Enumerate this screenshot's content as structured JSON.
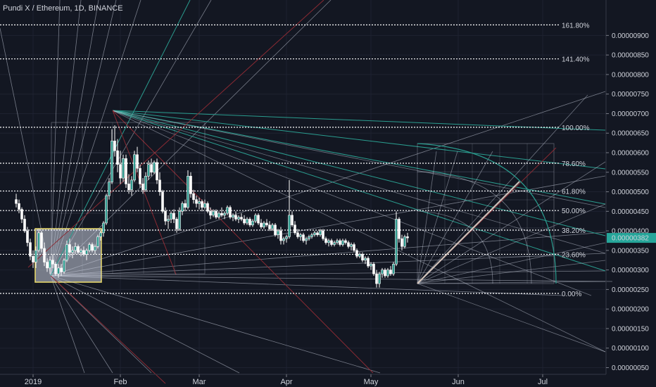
{
  "chart_data": {
    "type": "candlestick",
    "title": "Pundi X / Ethereum, 1D, BINANCE",
    "ylim": [
      5e-08,
      9.5e-07
    ],
    "y_ticks": [
      {
        "value": 9e-07,
        "label": "0.00000900"
      },
      {
        "value": 8.5e-07,
        "label": "0.00000850"
      },
      {
        "value": 8e-07,
        "label": "0.00000800"
      },
      {
        "value": 7.5e-07,
        "label": "0.00000750"
      },
      {
        "value": 7e-07,
        "label": "0.00000700"
      },
      {
        "value": 6.5e-07,
        "label": "0.00000650"
      },
      {
        "value": 6e-07,
        "label": "0.00000600"
      },
      {
        "value": 5.5e-07,
        "label": "0.00000550"
      },
      {
        "value": 5e-07,
        "label": "0.00000500"
      },
      {
        "value": 4.5e-07,
        "label": "0.00000450"
      },
      {
        "value": 4e-07,
        "label": "0.00000400"
      },
      {
        "value": 3.5e-07,
        "label": "0.00000350"
      },
      {
        "value": 3e-07,
        "label": "0.00000300"
      },
      {
        "value": 2.5e-07,
        "label": "0.00000250"
      },
      {
        "value": 2e-07,
        "label": "0.00000200"
      },
      {
        "value": 1.5e-07,
        "label": "0.00000150"
      },
      {
        "value": 1e-07,
        "label": "0.00000100"
      },
      {
        "value": 5e-08,
        "label": "0.00000050"
      }
    ],
    "x_ticks": [
      {
        "day": 0,
        "label": "2019"
      },
      {
        "day": 31,
        "label": "Feb"
      },
      {
        "day": 59,
        "label": "Mar"
      },
      {
        "day": 90,
        "label": "Apr"
      },
      {
        "day": 120,
        "label": "May"
      },
      {
        "day": 151,
        "label": "Jun"
      },
      {
        "day": 181,
        "label": "Jul"
      }
    ],
    "last_price": {
      "value": 3.82e-07,
      "label": "0.00000382"
    },
    "fib_levels": [
      {
        "ratio": "161.80%",
        "value": 9.27e-07
      },
      {
        "ratio": "141.40%",
        "value": 8.4e-07
      },
      {
        "ratio": "100.00%",
        "value": 6.65e-07
      },
      {
        "ratio": "78.60%",
        "value": 5.73e-07
      },
      {
        "ratio": "61.80%",
        "value": 5.02e-07
      },
      {
        "ratio": "50.00%",
        "value": 4.52e-07
      },
      {
        "ratio": "38.20%",
        "value": 4.02e-07
      },
      {
        "ratio": "23.60%",
        "value": 3.4e-07
      },
      {
        "ratio": "0.00%",
        "value": 2.4e-07
      }
    ],
    "candles": [
      {
        "day": -6,
        "o": 4.8,
        "h": 4.95,
        "l": 4.6,
        "c": 4.7
      },
      {
        "day": -5,
        "o": 4.7,
        "h": 4.8,
        "l": 4.45,
        "c": 4.55
      },
      {
        "day": -4,
        "o": 4.55,
        "h": 4.6,
        "l": 4.2,
        "c": 4.3
      },
      {
        "day": -3,
        "o": 4.3,
        "h": 4.4,
        "l": 3.95,
        "c": 4.0
      },
      {
        "day": -2,
        "o": 4.0,
        "h": 4.1,
        "l": 3.6,
        "c": 3.7
      },
      {
        "day": -1,
        "o": 3.7,
        "h": 3.8,
        "l": 3.25,
        "c": 3.35
      },
      {
        "day": 0,
        "o": 3.35,
        "h": 3.5,
        "l": 3.05,
        "c": 3.2
      },
      {
        "day": 1,
        "o": 3.2,
        "h": 3.6,
        "l": 3.05,
        "c": 3.5
      },
      {
        "day": 2,
        "o": 3.5,
        "h": 4.05,
        "l": 3.45,
        "c": 3.95
      },
      {
        "day": 3,
        "o": 3.95,
        "h": 4.0,
        "l": 3.45,
        "c": 3.55
      },
      {
        "day": 4,
        "o": 3.55,
        "h": 3.7,
        "l": 3.1,
        "c": 3.2
      },
      {
        "day": 5,
        "o": 3.2,
        "h": 3.3,
        "l": 2.95,
        "c": 3.05
      },
      {
        "day": 6,
        "o": 3.05,
        "h": 3.35,
        "l": 2.9,
        "c": 3.25
      },
      {
        "day": 7,
        "o": 3.25,
        "h": 3.4,
        "l": 3.05,
        "c": 3.15
      },
      {
        "day": 8,
        "o": 3.15,
        "h": 3.2,
        "l": 2.85,
        "c": 2.9
      },
      {
        "day": 9,
        "o": 2.9,
        "h": 3.15,
        "l": 2.8,
        "c": 3.05
      },
      {
        "day": 10,
        "o": 3.05,
        "h": 3.15,
        "l": 2.85,
        "c": 2.95
      },
      {
        "day": 11,
        "o": 2.95,
        "h": 3.3,
        "l": 2.9,
        "c": 3.25
      },
      {
        "day": 12,
        "o": 3.25,
        "h": 3.75,
        "l": 3.2,
        "c": 3.65
      },
      {
        "day": 13,
        "o": 3.65,
        "h": 3.8,
        "l": 3.35,
        "c": 3.45
      },
      {
        "day": 14,
        "o": 3.45,
        "h": 3.6,
        "l": 3.3,
        "c": 3.5
      },
      {
        "day": 15,
        "o": 3.5,
        "h": 3.7,
        "l": 3.4,
        "c": 3.6
      },
      {
        "day": 16,
        "o": 3.6,
        "h": 3.65,
        "l": 3.4,
        "c": 3.45
      },
      {
        "day": 17,
        "o": 3.45,
        "h": 3.55,
        "l": 3.35,
        "c": 3.5
      },
      {
        "day": 18,
        "o": 3.5,
        "h": 3.6,
        "l": 3.35,
        "c": 3.4
      },
      {
        "day": 19,
        "o": 3.4,
        "h": 3.55,
        "l": 3.25,
        "c": 3.5
      },
      {
        "day": 20,
        "o": 3.5,
        "h": 3.7,
        "l": 3.45,
        "c": 3.65
      },
      {
        "day": 21,
        "o": 3.65,
        "h": 3.7,
        "l": 3.45,
        "c": 3.5
      },
      {
        "day": 22,
        "o": 3.5,
        "h": 3.65,
        "l": 3.4,
        "c": 3.6
      },
      {
        "day": 23,
        "o": 3.6,
        "h": 3.9,
        "l": 3.55,
        "c": 3.85
      },
      {
        "day": 24,
        "o": 3.85,
        "h": 4.0,
        "l": 3.75,
        "c": 3.95
      },
      {
        "day": 25,
        "o": 3.95,
        "h": 4.25,
        "l": 3.85,
        "c": 4.2
      },
      {
        "day": 26,
        "o": 4.2,
        "h": 4.95,
        "l": 4.15,
        "c": 4.9
      },
      {
        "day": 27,
        "o": 4.9,
        "h": 5.35,
        "l": 4.8,
        "c": 5.25
      },
      {
        "day": 28,
        "o": 5.25,
        "h": 6.6,
        "l": 5.2,
        "c": 6.3
      },
      {
        "day": 29,
        "o": 6.3,
        "h": 6.7,
        "l": 5.9,
        "c": 6.05
      },
      {
        "day": 30,
        "o": 6.05,
        "h": 6.35,
        "l": 5.5,
        "c": 5.7
      },
      {
        "day": 31,
        "o": 5.7,
        "h": 6.05,
        "l": 5.2,
        "c": 5.35
      },
      {
        "day": 32,
        "o": 5.35,
        "h": 5.95,
        "l": 5.25,
        "c": 5.85
      },
      {
        "day": 33,
        "o": 5.85,
        "h": 5.95,
        "l": 5.1,
        "c": 5.2
      },
      {
        "day": 34,
        "o": 5.2,
        "h": 5.45,
        "l": 4.95,
        "c": 5.05
      },
      {
        "day": 35,
        "o": 5.05,
        "h": 5.4,
        "l": 4.9,
        "c": 5.3
      },
      {
        "day": 36,
        "o": 5.3,
        "h": 6.05,
        "l": 5.25,
        "c": 5.95
      },
      {
        "day": 37,
        "o": 5.95,
        "h": 6.15,
        "l": 5.5,
        "c": 5.6
      },
      {
        "day": 38,
        "o": 5.6,
        "h": 5.7,
        "l": 5.1,
        "c": 5.2
      },
      {
        "day": 39,
        "o": 5.2,
        "h": 5.35,
        "l": 4.95,
        "c": 5.05
      },
      {
        "day": 40,
        "o": 5.05,
        "h": 5.5,
        "l": 5.0,
        "c": 5.4
      },
      {
        "day": 41,
        "o": 5.4,
        "h": 5.8,
        "l": 5.3,
        "c": 5.7
      },
      {
        "day": 42,
        "o": 5.7,
        "h": 5.85,
        "l": 5.4,
        "c": 5.5
      },
      {
        "day": 43,
        "o": 5.5,
        "h": 5.8,
        "l": 5.45,
        "c": 5.75
      },
      {
        "day": 44,
        "o": 5.75,
        "h": 5.85,
        "l": 5.2,
        "c": 5.3
      },
      {
        "day": 45,
        "o": 5.3,
        "h": 5.5,
        "l": 4.9,
        "c": 5.0
      },
      {
        "day": 46,
        "o": 5.0,
        "h": 5.05,
        "l": 4.45,
        "c": 4.5
      },
      {
        "day": 47,
        "o": 4.5,
        "h": 4.6,
        "l": 4.15,
        "c": 4.25
      },
      {
        "day": 48,
        "o": 4.25,
        "h": 4.4,
        "l": 4.05,
        "c": 4.3
      },
      {
        "day": 49,
        "o": 4.3,
        "h": 4.5,
        "l": 4.2,
        "c": 4.45
      },
      {
        "day": 50,
        "o": 4.45,
        "h": 4.55,
        "l": 4.2,
        "c": 4.3
      },
      {
        "day": 51,
        "o": 4.3,
        "h": 4.35,
        "l": 3.95,
        "c": 4.05
      },
      {
        "day": 52,
        "o": 4.05,
        "h": 4.6,
        "l": 4.0,
        "c": 4.5
      },
      {
        "day": 53,
        "o": 4.5,
        "h": 4.75,
        "l": 4.4,
        "c": 4.7
      },
      {
        "day": 54,
        "o": 4.7,
        "h": 4.8,
        "l": 4.5,
        "c": 4.6
      },
      {
        "day": 55,
        "o": 4.6,
        "h": 5.55,
        "l": 4.55,
        "c": 5.4
      },
      {
        "day": 56,
        "o": 5.4,
        "h": 5.5,
        "l": 4.85,
        "c": 4.95
      },
      {
        "day": 57,
        "o": 4.95,
        "h": 5.05,
        "l": 4.7,
        "c": 4.8
      },
      {
        "day": 58,
        "o": 4.8,
        "h": 4.9,
        "l": 4.6,
        "c": 4.7
      },
      {
        "day": 59,
        "o": 4.7,
        "h": 4.85,
        "l": 4.55,
        "c": 4.75
      },
      {
        "day": 60,
        "o": 4.75,
        "h": 4.8,
        "l": 4.5,
        "c": 4.6
      },
      {
        "day": 61,
        "o": 4.6,
        "h": 4.8,
        "l": 4.55,
        "c": 4.7
      },
      {
        "day": 62,
        "o": 4.7,
        "h": 4.75,
        "l": 4.45,
        "c": 4.5
      },
      {
        "day": 63,
        "o": 4.5,
        "h": 4.6,
        "l": 4.3,
        "c": 4.4
      },
      {
        "day": 64,
        "o": 4.4,
        "h": 4.55,
        "l": 4.35,
        "c": 4.5
      },
      {
        "day": 65,
        "o": 4.5,
        "h": 4.55,
        "l": 4.3,
        "c": 4.35
      },
      {
        "day": 66,
        "o": 4.35,
        "h": 4.5,
        "l": 4.3,
        "c": 4.45
      },
      {
        "day": 67,
        "o": 4.45,
        "h": 4.6,
        "l": 4.35,
        "c": 4.4
      },
      {
        "day": 68,
        "o": 4.4,
        "h": 4.5,
        "l": 4.3,
        "c": 4.45
      },
      {
        "day": 69,
        "o": 4.45,
        "h": 4.65,
        "l": 4.4,
        "c": 4.6
      },
      {
        "day": 70,
        "o": 4.6,
        "h": 4.65,
        "l": 4.3,
        "c": 4.35
      },
      {
        "day": 71,
        "o": 4.35,
        "h": 4.45,
        "l": 4.25,
        "c": 4.4
      },
      {
        "day": 72,
        "o": 4.4,
        "h": 4.5,
        "l": 4.25,
        "c": 4.3
      },
      {
        "day": 73,
        "o": 4.3,
        "h": 4.4,
        "l": 4.2,
        "c": 4.35
      },
      {
        "day": 74,
        "o": 4.35,
        "h": 4.45,
        "l": 4.25,
        "c": 4.3
      },
      {
        "day": 75,
        "o": 4.3,
        "h": 4.4,
        "l": 4.15,
        "c": 4.2
      },
      {
        "day": 76,
        "o": 4.2,
        "h": 4.35,
        "l": 4.15,
        "c": 4.3
      },
      {
        "day": 77,
        "o": 4.3,
        "h": 4.35,
        "l": 4.1,
        "c": 4.15
      },
      {
        "day": 78,
        "o": 4.15,
        "h": 4.3,
        "l": 4.1,
        "c": 4.25
      },
      {
        "day": 79,
        "o": 4.25,
        "h": 4.45,
        "l": 4.2,
        "c": 4.4
      },
      {
        "day": 80,
        "o": 4.4,
        "h": 4.45,
        "l": 4.15,
        "c": 4.2
      },
      {
        "day": 81,
        "o": 4.2,
        "h": 4.3,
        "l": 4.05,
        "c": 4.1
      },
      {
        "day": 82,
        "o": 4.1,
        "h": 4.25,
        "l": 4.05,
        "c": 4.2
      },
      {
        "day": 83,
        "o": 4.2,
        "h": 4.3,
        "l": 4.1,
        "c": 4.15
      },
      {
        "day": 84,
        "o": 4.15,
        "h": 4.25,
        "l": 4.0,
        "c": 4.05
      },
      {
        "day": 85,
        "o": 4.05,
        "h": 4.2,
        "l": 4.0,
        "c": 4.15
      },
      {
        "day": 86,
        "o": 4.15,
        "h": 4.2,
        "l": 3.85,
        "c": 3.9
      },
      {
        "day": 87,
        "o": 3.9,
        "h": 4.05,
        "l": 3.8,
        "c": 4.0
      },
      {
        "day": 88,
        "o": 4.0,
        "h": 4.1,
        "l": 3.65,
        "c": 3.75
      },
      {
        "day": 89,
        "o": 3.75,
        "h": 3.85,
        "l": 3.65,
        "c": 3.8
      },
      {
        "day": 90,
        "o": 3.8,
        "h": 3.9,
        "l": 3.7,
        "c": 3.85
      },
      {
        "day": 91,
        "o": 3.85,
        "h": 5.3,
        "l": 3.8,
        "c": 4.4
      },
      {
        "day": 92,
        "o": 4.4,
        "h": 4.5,
        "l": 4.1,
        "c": 4.15
      },
      {
        "day": 93,
        "o": 4.15,
        "h": 4.25,
        "l": 3.9,
        "c": 3.95
      },
      {
        "day": 94,
        "o": 3.95,
        "h": 4.05,
        "l": 3.8,
        "c": 3.85
      },
      {
        "day": 95,
        "o": 3.85,
        "h": 3.95,
        "l": 3.75,
        "c": 3.9
      },
      {
        "day": 96,
        "o": 3.9,
        "h": 3.95,
        "l": 3.7,
        "c": 3.75
      },
      {
        "day": 97,
        "o": 3.75,
        "h": 3.85,
        "l": 3.65,
        "c": 3.8
      },
      {
        "day": 98,
        "o": 3.8,
        "h": 3.9,
        "l": 3.75,
        "c": 3.85
      },
      {
        "day": 99,
        "o": 3.85,
        "h": 3.95,
        "l": 3.8,
        "c": 3.9
      },
      {
        "day": 100,
        "o": 3.9,
        "h": 4.0,
        "l": 3.85,
        "c": 3.95
      },
      {
        "day": 101,
        "o": 3.95,
        "h": 4.0,
        "l": 3.85,
        "c": 3.9
      },
      {
        "day": 102,
        "o": 3.9,
        "h": 4.05,
        "l": 3.85,
        "c": 4.0
      },
      {
        "day": 103,
        "o": 4.0,
        "h": 4.05,
        "l": 3.75,
        "c": 3.8
      },
      {
        "day": 104,
        "o": 3.8,
        "h": 3.85,
        "l": 3.65,
        "c": 3.7
      },
      {
        "day": 105,
        "o": 3.7,
        "h": 3.8,
        "l": 3.6,
        "c": 3.75
      },
      {
        "day": 106,
        "o": 3.75,
        "h": 3.8,
        "l": 3.6,
        "c": 3.65
      },
      {
        "day": 107,
        "o": 3.65,
        "h": 3.75,
        "l": 3.6,
        "c": 3.7
      },
      {
        "day": 108,
        "o": 3.7,
        "h": 3.8,
        "l": 3.65,
        "c": 3.75
      },
      {
        "day": 109,
        "o": 3.75,
        "h": 3.8,
        "l": 3.6,
        "c": 3.65
      },
      {
        "day": 110,
        "o": 3.65,
        "h": 3.8,
        "l": 3.6,
        "c": 3.75
      },
      {
        "day": 111,
        "o": 3.75,
        "h": 3.8,
        "l": 3.65,
        "c": 3.7
      },
      {
        "day": 112,
        "o": 3.7,
        "h": 3.75,
        "l": 3.55,
        "c": 3.6
      },
      {
        "day": 113,
        "o": 3.6,
        "h": 3.7,
        "l": 3.5,
        "c": 3.65
      },
      {
        "day": 114,
        "o": 3.65,
        "h": 3.7,
        "l": 3.45,
        "c": 3.5
      },
      {
        "day": 115,
        "o": 3.5,
        "h": 3.55,
        "l": 3.3,
        "c": 3.35
      },
      {
        "day": 116,
        "o": 3.35,
        "h": 3.45,
        "l": 3.3,
        "c": 3.4
      },
      {
        "day": 117,
        "o": 3.4,
        "h": 3.45,
        "l": 3.2,
        "c": 3.25
      },
      {
        "day": 118,
        "o": 3.25,
        "h": 3.35,
        "l": 3.15,
        "c": 3.3
      },
      {
        "day": 119,
        "o": 3.3,
        "h": 3.35,
        "l": 3.05,
        "c": 3.1
      },
      {
        "day": 120,
        "o": 3.1,
        "h": 3.2,
        "l": 3.0,
        "c": 3.15
      },
      {
        "day": 121,
        "o": 3.15,
        "h": 3.2,
        "l": 2.85,
        "c": 2.9
      },
      {
        "day": 122,
        "o": 2.9,
        "h": 3.0,
        "l": 2.55,
        "c": 2.65
      },
      {
        "day": 123,
        "o": 2.65,
        "h": 2.95,
        "l": 2.55,
        "c": 2.9
      },
      {
        "day": 124,
        "o": 2.9,
        "h": 3.05,
        "l": 2.8,
        "c": 3.0
      },
      {
        "day": 125,
        "o": 3.0,
        "h": 3.05,
        "l": 2.8,
        "c": 2.85
      },
      {
        "day": 126,
        "o": 2.85,
        "h": 3.05,
        "l": 2.8,
        "c": 3.0
      },
      {
        "day": 127,
        "o": 3.0,
        "h": 3.1,
        "l": 2.85,
        "c": 2.9
      },
      {
        "day": 128,
        "o": 2.9,
        "h": 3.2,
        "l": 2.85,
        "c": 3.15
      },
      {
        "day": 129,
        "o": 3.15,
        "h": 4.5,
        "l": 3.1,
        "c": 4.3
      },
      {
        "day": 130,
        "o": 4.3,
        "h": 4.35,
        "l": 3.7,
        "c": 3.8
      },
      {
        "day": 131,
        "o": 3.8,
        "h": 3.9,
        "l": 3.5,
        "c": 3.6
      },
      {
        "day": 132,
        "o": 3.6,
        "h": 3.9,
        "l": 3.55,
        "c": 3.85
      },
      {
        "day": 133,
        "o": 3.85,
        "h": 3.95,
        "l": 3.7,
        "c": 3.82
      }
    ]
  }
}
